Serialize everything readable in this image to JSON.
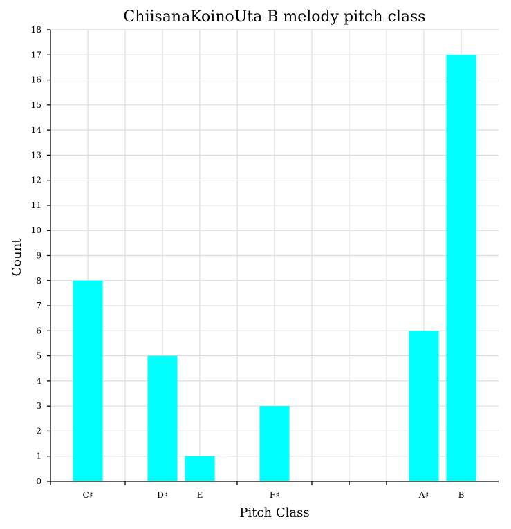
{
  "chart_data": {
    "type": "bar",
    "title": "ChiisanaKoinoUta B melody pitch class",
    "xlabel": "Pitch Class",
    "ylabel": "Count",
    "categories": [
      "C♯",
      "",
      "D♯",
      "E",
      "",
      "F♯",
      "",
      "",
      "",
      "A♯",
      "B"
    ],
    "values": [
      8,
      0,
      5,
      1,
      0,
      3,
      0,
      0,
      0,
      6,
      17
    ],
    "ylim": [
      0,
      18
    ],
    "yticks": [
      0,
      1,
      2,
      3,
      4,
      5,
      6,
      7,
      8,
      9,
      10,
      11,
      12,
      13,
      14,
      15,
      16,
      17,
      18
    ],
    "grid": true,
    "bar_color": "#00ffff"
  }
}
